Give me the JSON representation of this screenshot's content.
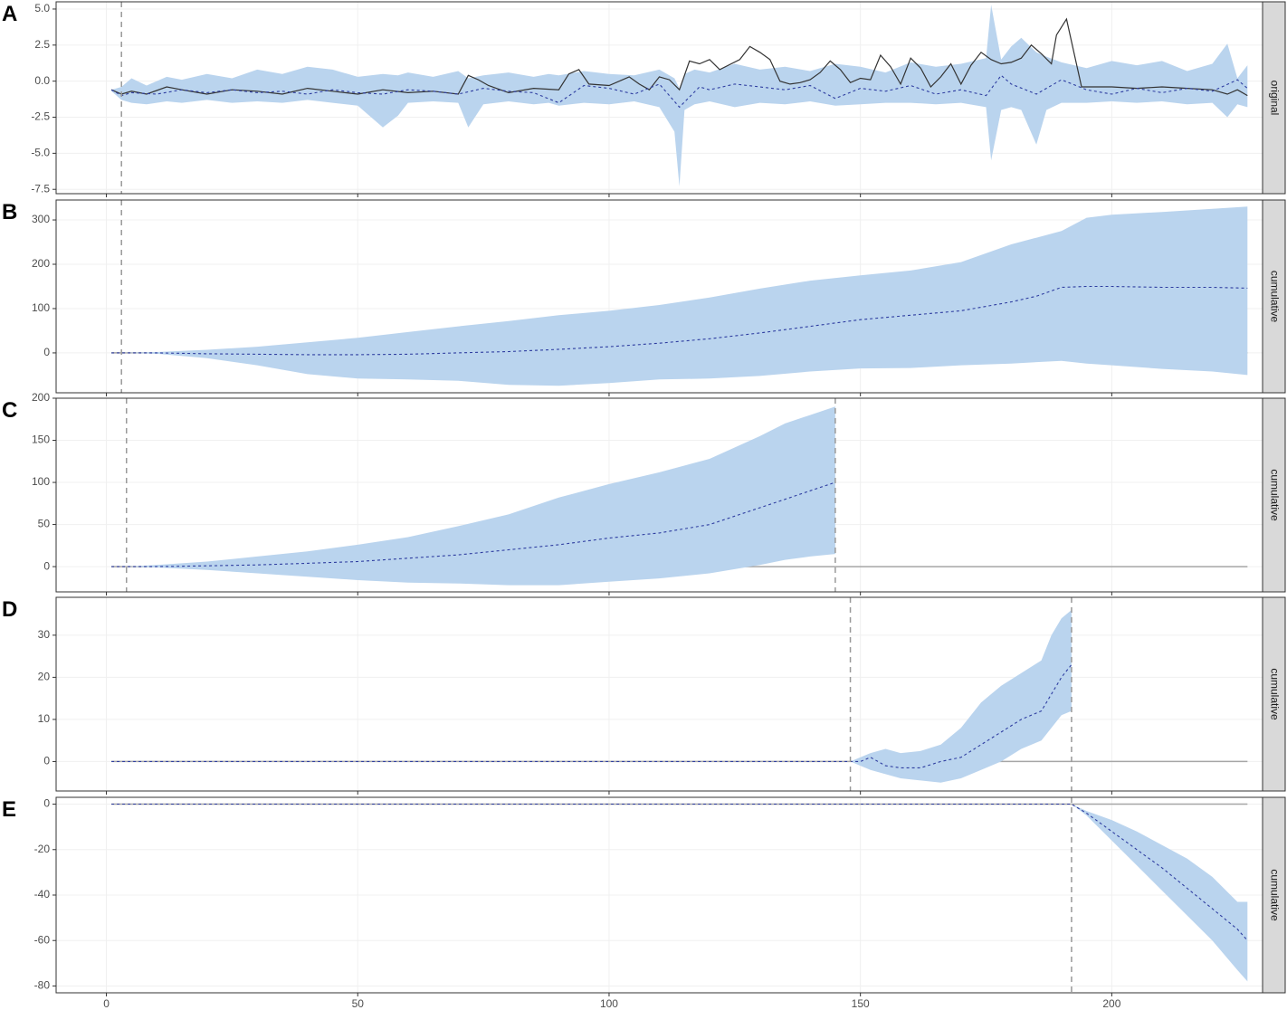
{
  "chart_data": [
    {
      "id": "A",
      "panel_letter": "A",
      "type": "line",
      "strip_label": "original",
      "xlim": [
        -10,
        230
      ],
      "ylim": [
        -7.8,
        5.5
      ],
      "y_ticks": [
        5.0,
        2.5,
        0.0,
        -2.5,
        -5.0,
        -7.5
      ],
      "y_tick_labels": [
        "5.0",
        "2.5",
        "0.0",
        "-2.5",
        "-5.0",
        "-7.5"
      ],
      "x_ticks": [
        0,
        50,
        100,
        150,
        200
      ],
      "vlines": [
        3
      ],
      "hline": null,
      "series": [
        {
          "role": "ribbon",
          "color": "#bad4ee",
          "x": [
            1,
            3,
            5,
            8,
            12,
            15,
            20,
            25,
            30,
            35,
            40,
            45,
            50,
            55,
            58,
            60,
            65,
            70,
            72,
            75,
            80,
            85,
            88,
            90,
            95,
            100,
            105,
            110,
            113,
            114,
            115,
            117,
            120,
            125,
            130,
            135,
            140,
            145,
            150,
            155,
            160,
            165,
            170,
            175,
            176,
            178,
            180,
            182,
            185,
            187,
            190,
            195,
            200,
            205,
            210,
            215,
            220,
            223,
            225,
            227
          ],
          "upper": [
            -0.6,
            -0.4,
            0.2,
            -0.3,
            0.3,
            0.1,
            0.5,
            0.2,
            0.8,
            0.5,
            1.0,
            0.8,
            0.3,
            0.5,
            0.4,
            0.6,
            0.3,
            0.7,
            0.2,
            0.4,
            0.6,
            0.3,
            0.5,
            0.4,
            0.7,
            0.5,
            0.4,
            0.8,
            0.2,
            -0.5,
            0.5,
            0.8,
            0.6,
            1.2,
            0.8,
            1.0,
            0.7,
            1.2,
            1.0,
            0.6,
            1.3,
            1.0,
            1.2,
            1.6,
            5.3,
            1.5,
            2.4,
            3.0,
            2.0,
            1.7,
            1.3,
            0.9,
            1.4,
            1.1,
            1.4,
            0.7,
            1.2,
            2.6,
            0.2,
            1.1
          ],
          "lower": [
            -0.7,
            -1.3,
            -1.5,
            -1.6,
            -1.4,
            -1.5,
            -1.3,
            -1.5,
            -1.4,
            -1.5,
            -1.3,
            -1.5,
            -1.7,
            -3.2,
            -2.4,
            -1.5,
            -1.4,
            -1.5,
            -3.2,
            -1.6,
            -1.4,
            -1.6,
            -1.5,
            -1.7,
            -1.5,
            -1.6,
            -1.4,
            -1.8,
            -3.5,
            -7.3,
            -2.0,
            -1.6,
            -1.4,
            -1.8,
            -1.5,
            -1.6,
            -1.4,
            -1.7,
            -1.6,
            -1.5,
            -1.5,
            -1.6,
            -1.5,
            -1.8,
            -5.5,
            -2.0,
            -1.8,
            -2.0,
            -4.4,
            -2.0,
            -1.5,
            -1.5,
            -1.4,
            -1.5,
            -1.4,
            -1.6,
            -1.5,
            -2.5,
            -1.6,
            -1.8
          ]
        },
        {
          "role": "observed",
          "color": "#333333",
          "x": [
            1,
            3,
            5,
            8,
            12,
            15,
            20,
            25,
            30,
            35,
            40,
            45,
            50,
            55,
            60,
            65,
            70,
            72,
            74,
            76,
            80,
            85,
            90,
            92,
            94,
            96,
            100,
            104,
            106,
            108,
            110,
            112,
            114,
            116,
            118,
            120,
            122,
            126,
            128,
            130,
            132,
            134,
            136,
            138,
            140,
            142,
            144,
            146,
            148,
            150,
            152,
            154,
            156,
            158,
            160,
            162,
            164,
            166,
            168,
            170,
            172,
            174,
            176,
            178,
            180,
            182,
            184,
            186,
            188,
            189,
            191,
            194,
            200,
            205,
            210,
            215,
            220,
            223,
            225,
            227
          ],
          "values": [
            -0.6,
            -0.9,
            -0.7,
            -0.9,
            -0.4,
            -0.6,
            -0.9,
            -0.6,
            -0.7,
            -0.9,
            -0.5,
            -0.7,
            -0.9,
            -0.6,
            -0.8,
            -0.7,
            -0.9,
            0.4,
            0.1,
            -0.3,
            -0.8,
            -0.5,
            -0.6,
            0.5,
            0.8,
            -0.2,
            -0.3,
            0.3,
            -0.2,
            -0.6,
            0.3,
            0.1,
            -0.6,
            1.4,
            1.2,
            1.5,
            0.8,
            1.5,
            2.4,
            2.0,
            1.5,
            0.0,
            -0.2,
            -0.1,
            0.1,
            0.6,
            1.4,
            0.8,
            -0.1,
            0.2,
            0.1,
            1.8,
            1.0,
            -0.2,
            1.6,
            0.9,
            -0.4,
            0.3,
            1.2,
            -0.2,
            1.1,
            2.0,
            1.5,
            1.2,
            1.3,
            1.6,
            2.5,
            1.9,
            1.2,
            3.2,
            4.3,
            -0.4,
            -0.4,
            -0.5,
            -0.4,
            -0.5,
            -0.6,
            -0.9,
            -0.6,
            -1.0
          ]
        },
        {
          "role": "predicted",
          "color": "#2e3da0",
          "dashed": true,
          "x": [
            1,
            3,
            5,
            10,
            15,
            20,
            25,
            30,
            35,
            40,
            45,
            50,
            55,
            60,
            65,
            70,
            75,
            80,
            85,
            90,
            95,
            100,
            105,
            110,
            114,
            118,
            120,
            125,
            130,
            135,
            140,
            145,
            150,
            155,
            160,
            165,
            170,
            175,
            178,
            180,
            185,
            190,
            195,
            200,
            205,
            210,
            215,
            220,
            225,
            227
          ],
          "values": [
            -0.6,
            -1.0,
            -0.8,
            -0.9,
            -0.6,
            -0.8,
            -0.6,
            -0.8,
            -0.7,
            -0.9,
            -0.6,
            -0.8,
            -0.9,
            -0.6,
            -0.7,
            -0.9,
            -0.5,
            -0.7,
            -0.8,
            -1.5,
            -0.3,
            -0.5,
            -0.9,
            -0.2,
            -1.8,
            -0.4,
            -0.6,
            -0.2,
            -0.4,
            -0.6,
            -0.3,
            -1.2,
            -0.5,
            -0.7,
            -0.3,
            -0.9,
            -0.6,
            -1.0,
            0.4,
            -0.2,
            -0.9,
            0.1,
            -0.6,
            -0.9,
            -0.5,
            -0.8,
            -0.5,
            -0.7,
            0.1,
            -0.5
          ]
        }
      ]
    },
    {
      "id": "B",
      "panel_letter": "B",
      "type": "line",
      "strip_label": "cumulative",
      "xlim": [
        -10,
        230
      ],
      "ylim": [
        -90,
        345
      ],
      "y_ticks": [
        300,
        200,
        100,
        0
      ],
      "y_tick_labels": [
        "300",
        "200",
        "100",
        "0"
      ],
      "x_ticks": [
        0,
        50,
        100,
        150,
        200
      ],
      "vlines": [
        3
      ],
      "hline": 0,
      "series": [
        {
          "role": "ribbon",
          "color": "#bad4ee",
          "x": [
            1,
            3,
            10,
            20,
            30,
            40,
            50,
            60,
            70,
            80,
            90,
            100,
            110,
            120,
            130,
            140,
            150,
            160,
            170,
            180,
            190,
            195,
            200,
            210,
            220,
            227
          ],
          "upper": [
            0,
            0,
            2,
            7,
            14,
            24,
            34,
            47,
            60,
            72,
            85,
            95,
            108,
            125,
            145,
            163,
            175,
            186,
            205,
            245,
            275,
            305,
            312,
            318,
            325,
            330
          ],
          "lower": [
            0,
            0,
            -2,
            -12,
            -28,
            -48,
            -58,
            -60,
            -63,
            -72,
            -74,
            -68,
            -60,
            -58,
            -52,
            -42,
            -35,
            -34,
            -28,
            -24,
            -18,
            -24,
            -28,
            -36,
            -42,
            -50
          ]
        },
        {
          "role": "predicted",
          "color": "#2e3da0",
          "dashed": true,
          "x": [
            1,
            3,
            10,
            20,
            30,
            40,
            50,
            60,
            70,
            80,
            90,
            100,
            110,
            120,
            130,
            140,
            150,
            160,
            170,
            180,
            185,
            190,
            195,
            200,
            210,
            220,
            227
          ],
          "values": [
            0,
            0,
            0,
            -2,
            -3,
            -4,
            -4,
            -3,
            0,
            3,
            8,
            14,
            22,
            32,
            45,
            60,
            75,
            85,
            95,
            115,
            128,
            148,
            150,
            150,
            148,
            148,
            146
          ]
        }
      ]
    },
    {
      "id": "C",
      "panel_letter": "C",
      "type": "line",
      "strip_label": "cumulative",
      "xlim": [
        -10,
        230
      ],
      "ylim": [
        -30,
        200
      ],
      "y_ticks": [
        200,
        150,
        100,
        50,
        0
      ],
      "y_tick_labels": [
        "200",
        "150",
        "100",
        "50",
        "0"
      ],
      "x_ticks": [
        0,
        50,
        100,
        150,
        200
      ],
      "vlines": [
        4,
        145
      ],
      "hline": 0,
      "series": [
        {
          "role": "ribbon",
          "color": "#bad4ee",
          "x": [
            1,
            4,
            10,
            20,
            30,
            40,
            50,
            60,
            70,
            80,
            90,
            100,
            110,
            120,
            130,
            135,
            140,
            145
          ],
          "upper": [
            0,
            0,
            2,
            6,
            12,
            18,
            26,
            35,
            48,
            62,
            82,
            98,
            112,
            128,
            155,
            170,
            180,
            190
          ],
          "lower": [
            0,
            0,
            -1,
            -4,
            -8,
            -12,
            -16,
            -19,
            -20,
            -22,
            -22,
            -18,
            -14,
            -8,
            2,
            8,
            12,
            15
          ]
        },
        {
          "role": "predicted",
          "color": "#2e3da0",
          "dashed": true,
          "x": [
            1,
            4,
            10,
            20,
            30,
            40,
            50,
            60,
            70,
            80,
            90,
            100,
            110,
            120,
            125,
            130,
            135,
            140,
            145
          ],
          "values": [
            0,
            0,
            0,
            1,
            2,
            4,
            6,
            10,
            14,
            20,
            26,
            34,
            40,
            50,
            60,
            70,
            80,
            90,
            100
          ]
        }
      ]
    },
    {
      "id": "D",
      "panel_letter": "D",
      "type": "line",
      "strip_label": "cumulative",
      "xlim": [
        -10,
        230
      ],
      "ylim": [
        -7,
        39
      ],
      "y_ticks": [
        30,
        20,
        10,
        0
      ],
      "y_tick_labels": [
        "30",
        "20",
        "10",
        "0"
      ],
      "x_ticks": [
        0,
        50,
        100,
        150,
        200
      ],
      "vlines": [
        148,
        192
      ],
      "hline": 0,
      "series": [
        {
          "role": "ribbon",
          "color": "#bad4ee",
          "x": [
            148,
            150,
            152,
            155,
            158,
            162,
            166,
            170,
            174,
            178,
            182,
            186,
            188,
            190,
            192
          ],
          "upper": [
            0,
            1,
            2,
            3,
            2,
            2.5,
            4,
            8,
            14,
            18,
            21,
            24,
            30,
            34,
            36
          ],
          "lower": [
            0,
            -1,
            -2,
            -3,
            -4,
            -4.5,
            -5,
            -4,
            -2,
            0,
            3,
            5,
            8,
            11,
            12
          ]
        },
        {
          "role": "predicted",
          "color": "#2e3da0",
          "dashed": true,
          "x": [
            1,
            148,
            150,
            152,
            155,
            158,
            162,
            166,
            170,
            174,
            178,
            182,
            186,
            188,
            190,
            192
          ],
          "values": [
            0,
            0,
            0,
            1,
            -1,
            -1.5,
            -1.5,
            0,
            1,
            4,
            7,
            10,
            12,
            16,
            20,
            23
          ]
        }
      ]
    },
    {
      "id": "E",
      "panel_letter": "E",
      "type": "line",
      "strip_label": "cumulative",
      "xlim": [
        -10,
        230
      ],
      "ylim": [
        -83,
        3
      ],
      "y_ticks": [
        0,
        -20,
        -40,
        -60,
        -80
      ],
      "y_tick_labels": [
        "0",
        "-20",
        "-40",
        "-60",
        "-80"
      ],
      "x_ticks": [
        0,
        50,
        100,
        150,
        200
      ],
      "x_tick_labels": [
        "0",
        "50",
        "100",
        "150",
        "200"
      ],
      "vlines": [
        192
      ],
      "hline": 0,
      "series": [
        {
          "role": "ribbon",
          "color": "#bad4ee",
          "x": [
            192,
            195,
            200,
            205,
            210,
            215,
            220,
            225,
            227
          ],
          "upper": [
            0,
            -3,
            -7,
            -12,
            -18,
            -24,
            -32,
            -43,
            -43
          ],
          "lower": [
            0,
            -5,
            -16,
            -27,
            -38,
            -49,
            -60,
            -73,
            -78
          ]
        },
        {
          "role": "predicted",
          "color": "#2e3da0",
          "dashed": true,
          "x": [
            1,
            192,
            195,
            200,
            205,
            210,
            215,
            220,
            225,
            227
          ],
          "values": [
            0,
            0,
            -4,
            -12,
            -20,
            -28,
            -37,
            -46,
            -55,
            -60
          ]
        }
      ]
    }
  ]
}
